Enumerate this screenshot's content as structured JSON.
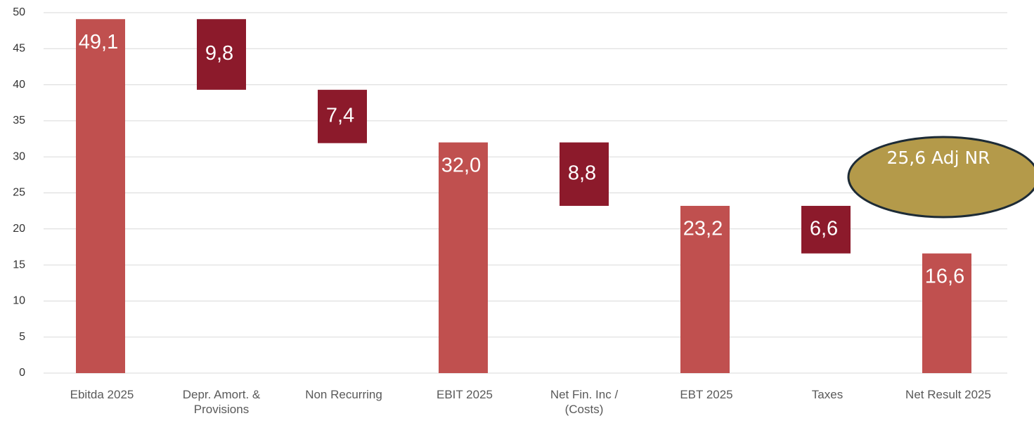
{
  "chart_data": {
    "type": "waterfall",
    "categories": [
      "Ebitda 2025",
      "Depr. Amort. & Provisions",
      "Non Recurring",
      "EBIT 2025",
      "Net Fin. Inc / (Costs)",
      "EBT 2025",
      "Taxes",
      "Net Result 2025"
    ],
    "values": [
      49.1,
      9.8,
      7.4,
      32.0,
      8.8,
      23.2,
      6.6,
      16.6
    ],
    "value_labels": [
      "49,1",
      "9,8",
      "7,4",
      "32,0",
      "8,8",
      "23,2",
      "6,6",
      "16,6"
    ],
    "measures": [
      "total",
      "decrease",
      "decrease",
      "total",
      "decrease",
      "total",
      "decrease",
      "total"
    ],
    "colors": {
      "total": "#c0504f",
      "decrease": "#8c1a2b"
    },
    "ylim": [
      0,
      50
    ],
    "yticks": [
      0,
      5,
      10,
      15,
      20,
      25,
      30,
      35,
      40,
      45,
      50
    ],
    "grid": true,
    "annotation": "25,6 Adj NR"
  }
}
